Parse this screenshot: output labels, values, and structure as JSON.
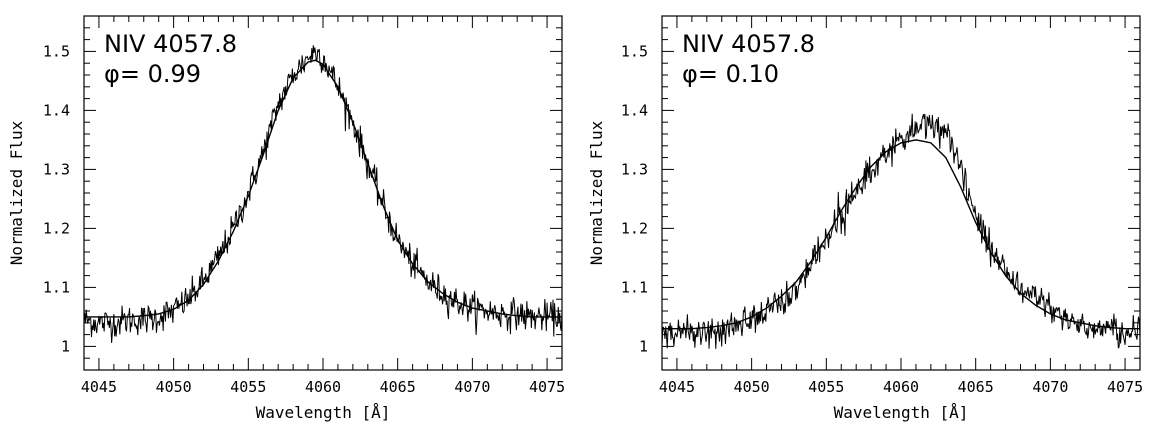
{
  "chart_data": [
    {
      "type": "line",
      "xlabel": "Wavelength [Å]",
      "ylabel": "Normalized Flux",
      "xlim": [
        4044,
        4076
      ],
      "ylim": [
        0.96,
        1.56
      ],
      "xticks": [
        "4045",
        "4050",
        "4055",
        "4060",
        "4065",
        "4070",
        "4075"
      ],
      "yticks": [
        "1",
        "1.1",
        "1.2",
        "1.3",
        "1.4",
        "1.5"
      ],
      "annotations": [
        "NIV  4057.8",
        "φ=  0.99"
      ],
      "series": [
        {
          "style": "noisy-observed",
          "x": [
            4044,
            4045,
            4046,
            4047,
            4048,
            4049,
            4050,
            4051,
            4052,
            4053,
            4054,
            4055,
            4056,
            4057,
            4058,
            4059,
            4059.5,
            4060,
            4061,
            4062,
            4063,
            4064,
            4065,
            4066,
            4067,
            4068,
            4069,
            4070,
            4071,
            4072,
            4073,
            4074,
            4075,
            4076
          ],
          "y": [
            1.045,
            1.04,
            1.04,
            1.045,
            1.045,
            1.05,
            1.06,
            1.08,
            1.11,
            1.15,
            1.2,
            1.26,
            1.33,
            1.41,
            1.46,
            1.49,
            1.5,
            1.49,
            1.44,
            1.38,
            1.31,
            1.24,
            1.18,
            1.14,
            1.11,
            1.09,
            1.075,
            1.065,
            1.06,
            1.055,
            1.055,
            1.05,
            1.05,
            1.05
          ]
        },
        {
          "style": "smooth-fit",
          "x": [
            4044,
            4045,
            4046,
            4047,
            4048,
            4049,
            4050,
            4051,
            4052,
            4053,
            4054,
            4055,
            4056,
            4057,
            4058,
            4059,
            4059.5,
            4060,
            4061,
            4062,
            4063,
            4064,
            4065,
            4066,
            4067,
            4068,
            4069,
            4070,
            4071,
            4072,
            4073,
            4074,
            4075,
            4076
          ],
          "y": [
            1.05,
            1.05,
            1.05,
            1.05,
            1.052,
            1.055,
            1.063,
            1.078,
            1.105,
            1.145,
            1.195,
            1.255,
            1.325,
            1.4,
            1.455,
            1.482,
            1.485,
            1.478,
            1.44,
            1.38,
            1.31,
            1.24,
            1.18,
            1.14,
            1.11,
            1.09,
            1.075,
            1.065,
            1.06,
            1.055,
            1.052,
            1.05,
            1.05,
            1.05
          ]
        }
      ]
    },
    {
      "type": "line",
      "xlabel": "Wavelength [Å]",
      "ylabel": "Normalized Flux",
      "xlim": [
        4044,
        4076
      ],
      "ylim": [
        0.96,
        1.56
      ],
      "xticks": [
        "4045",
        "4050",
        "4055",
        "4060",
        "4065",
        "4070",
        "4075"
      ],
      "yticks": [
        "1",
        "1.1",
        "1.2",
        "1.3",
        "1.4",
        "1.5"
      ],
      "annotations": [
        "NIV  4057.8",
        "φ=  0.10"
      ],
      "series": [
        {
          "style": "noisy-observed",
          "x": [
            4044,
            4045,
            4046,
            4047,
            4048,
            4049,
            4050,
            4051,
            4052,
            4053,
            4054,
            4055,
            4056,
            4057,
            4058,
            4059,
            4060,
            4061,
            4062,
            4063,
            4064,
            4065,
            4066,
            4067,
            4068,
            4069,
            4070,
            4071,
            4072,
            4073,
            4074,
            4075,
            4076
          ],
          "y": [
            1.03,
            1.025,
            1.025,
            1.025,
            1.03,
            1.035,
            1.045,
            1.06,
            1.075,
            1.1,
            1.14,
            1.18,
            1.22,
            1.26,
            1.3,
            1.33,
            1.35,
            1.37,
            1.38,
            1.36,
            1.3,
            1.22,
            1.17,
            1.13,
            1.1,
            1.08,
            1.06,
            1.05,
            1.04,
            1.03,
            1.03,
            1.025,
            1.03
          ]
        },
        {
          "style": "smooth-fit",
          "x": [
            4044,
            4045,
            4046,
            4047,
            4048,
            4049,
            4050,
            4051,
            4052,
            4053,
            4054,
            4055,
            4056,
            4057,
            4058,
            4059,
            4060,
            4061,
            4062,
            4063,
            4064,
            4065,
            4066,
            4067,
            4068,
            4069,
            4070,
            4071,
            4072,
            4073,
            4074,
            4075,
            4076
          ],
          "y": [
            1.03,
            1.03,
            1.03,
            1.032,
            1.035,
            1.04,
            1.05,
            1.065,
            1.085,
            1.11,
            1.145,
            1.185,
            1.23,
            1.27,
            1.305,
            1.33,
            1.345,
            1.35,
            1.345,
            1.32,
            1.27,
            1.21,
            1.16,
            1.12,
            1.09,
            1.07,
            1.055,
            1.045,
            1.04,
            1.035,
            1.032,
            1.03,
            1.03
          ]
        }
      ]
    }
  ]
}
